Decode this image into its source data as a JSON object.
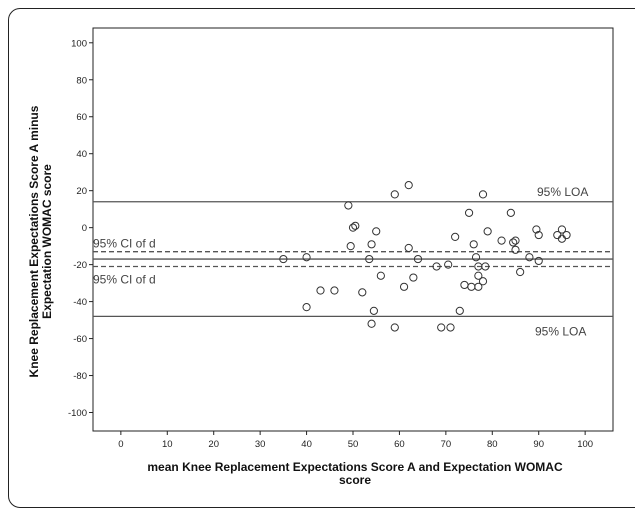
{
  "chart_data": {
    "type": "scatter",
    "xlabel": "mean Knee Replacement Expectations Score A and Expectation WOMAC score",
    "ylabel": "Knee Replacement Expectations Score A minus Expectation WOMAC score",
    "xlim": [
      -6,
      106
    ],
    "ylim": [
      -110,
      108
    ],
    "xticks": [
      0,
      10,
      20,
      30,
      40,
      50,
      60,
      70,
      80,
      90,
      100
    ],
    "yticks": [
      100,
      80,
      60,
      40,
      20,
      0,
      -20,
      -40,
      -60,
      -80,
      -100
    ],
    "grid": false,
    "reference_lines": [
      {
        "label": "95% LOA",
        "y": 14,
        "style": "solid"
      },
      {
        "label": "95% CI of d",
        "y": -13,
        "style": "dashed"
      },
      {
        "label": "",
        "y": -17,
        "style": "solid"
      },
      {
        "label": "95% CI of d",
        "y": -21,
        "style": "dashed"
      },
      {
        "label": "95% LOA",
        "y": -48,
        "style": "solid"
      }
    ],
    "points": [
      {
        "x": 35,
        "y": -17
      },
      {
        "x": 40,
        "y": -16
      },
      {
        "x": 40,
        "y": -43
      },
      {
        "x": 43,
        "y": -34
      },
      {
        "x": 46,
        "y": -34
      },
      {
        "x": 49,
        "y": 12
      },
      {
        "x": 49.5,
        "y": -10
      },
      {
        "x": 50,
        "y": 0
      },
      {
        "x": 50.5,
        "y": 1
      },
      {
        "x": 52,
        "y": -35
      },
      {
        "x": 53.5,
        "y": -17
      },
      {
        "x": 54,
        "y": -9
      },
      {
        "x": 54,
        "y": -52
      },
      {
        "x": 54.5,
        "y": -45
      },
      {
        "x": 55,
        "y": -2
      },
      {
        "x": 56,
        "y": -26
      },
      {
        "x": 59,
        "y": 18
      },
      {
        "x": 59,
        "y": -54
      },
      {
        "x": 61,
        "y": -32
      },
      {
        "x": 62,
        "y": 23
      },
      {
        "x": 62,
        "y": -11
      },
      {
        "x": 63,
        "y": -27
      },
      {
        "x": 64,
        "y": -17
      },
      {
        "x": 68,
        "y": -21
      },
      {
        "x": 69,
        "y": -54
      },
      {
        "x": 70.5,
        "y": -20
      },
      {
        "x": 71,
        "y": -54
      },
      {
        "x": 72,
        "y": -5
      },
      {
        "x": 73,
        "y": -45
      },
      {
        "x": 74,
        "y": -31
      },
      {
        "x": 75,
        "y": 8
      },
      {
        "x": 75.5,
        "y": -32
      },
      {
        "x": 76,
        "y": -9
      },
      {
        "x": 76.5,
        "y": -16
      },
      {
        "x": 77,
        "y": -21
      },
      {
        "x": 77,
        "y": -26
      },
      {
        "x": 77,
        "y": -32
      },
      {
        "x": 78,
        "y": 18
      },
      {
        "x": 78,
        "y": -29
      },
      {
        "x": 78.5,
        "y": -21
      },
      {
        "x": 79,
        "y": -2
      },
      {
        "x": 82,
        "y": -7
      },
      {
        "x": 84,
        "y": 8
      },
      {
        "x": 84.5,
        "y": -8
      },
      {
        "x": 85,
        "y": -7
      },
      {
        "x": 85,
        "y": -12
      },
      {
        "x": 86,
        "y": -24
      },
      {
        "x": 88,
        "y": -16
      },
      {
        "x": 89.5,
        "y": -1
      },
      {
        "x": 90,
        "y": -4
      },
      {
        "x": 90,
        "y": -18
      },
      {
        "x": 94,
        "y": -4
      },
      {
        "x": 95,
        "y": -1
      },
      {
        "x": 95,
        "y": -6
      },
      {
        "x": 96,
        "y": -4
      }
    ]
  }
}
